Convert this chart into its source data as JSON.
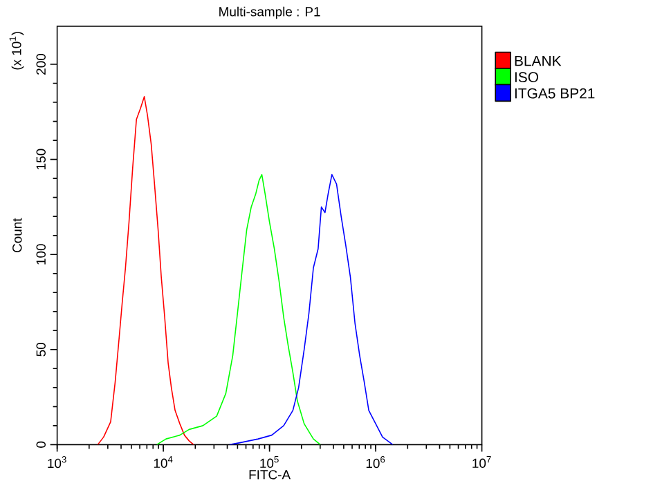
{
  "chart_data": {
    "type": "line",
    "title": "Multi-sample : P1",
    "xlabel": "FITC-A",
    "ylabel": "Count",
    "annotations": [
      "(x 10$^{1}$)"
    ],
    "log": "x",
    "legend": "top right",
    "marker": "none",
    "line_style": "solid",
    "xlim": [
      1000,
      10000000
    ],
    "ylim": [
      0,
      220
    ],
    "xticks": [
      {
        "value": 1000,
        "label": "10$^{3}$"
      },
      {
        "value": 10000,
        "label": "10$^{4}$"
      },
      {
        "value": 100000,
        "label": "10$^{5}$"
      },
      {
        "value": 1000000,
        "label": "10$^{6}$"
      },
      {
        "value": 10000000,
        "label": "10$^{7}$"
      }
    ],
    "yticks": [
      0,
      50,
      100,
      150,
      200
    ],
    "series": [
      {
        "name": "BLANK",
        "color": "#ff0000",
        "x": [
          2410,
          2740,
          3190,
          3520,
          3820,
          4090,
          4400,
          4750,
          5150,
          5580,
          6110,
          6620,
          7100,
          7690,
          8260,
          8930,
          9570,
          10300,
          11100,
          11900,
          12900,
          14300,
          15800,
          17500,
          19300
        ],
        "values": [
          0,
          4,
          12,
          33,
          55,
          74,
          93,
          117,
          146,
          171,
          177,
          183,
          173,
          158,
          137,
          113,
          88,
          67,
          43,
          30,
          18,
          11,
          5,
          2,
          0
        ]
      },
      {
        "name": "ISO",
        "color": "#00ff00",
        "x": [
          8670,
          10600,
          14300,
          17500,
          23600,
          31800,
          38800,
          45100,
          49900,
          55100,
          61000,
          67300,
          74300,
          79800,
          84700,
          90800,
          100000,
          111000,
          123000,
          136000,
          150000,
          166000,
          183000,
          212000,
          259000,
          301000
        ],
        "values": [
          0,
          3,
          5,
          8,
          10,
          15,
          27,
          47,
          69,
          91,
          113,
          125,
          132,
          139,
          142,
          132,
          117,
          103,
          86,
          67,
          52,
          38,
          23,
          11,
          3,
          0
        ]
      },
      {
        "name": "ITGA5  BP21",
        "color": "#0000ff",
        "x": [
          42100,
          52500,
          78200,
          105000,
          136000,
          166000,
          188000,
          212000,
          235000,
          259000,
          287000,
          308000,
          333000,
          357000,
          387000,
          428000,
          473000,
          522000,
          578000,
          638000,
          706000,
          780000,
          861000,
          1000000,
          1160000,
          1450000
        ],
        "values": [
          0,
          1,
          3,
          5,
          10,
          18,
          30,
          50,
          69,
          93,
          103,
          125,
          122,
          132,
          142,
          137,
          120,
          105,
          88,
          64,
          47,
          33,
          18,
          11,
          4,
          0
        ]
      }
    ]
  }
}
